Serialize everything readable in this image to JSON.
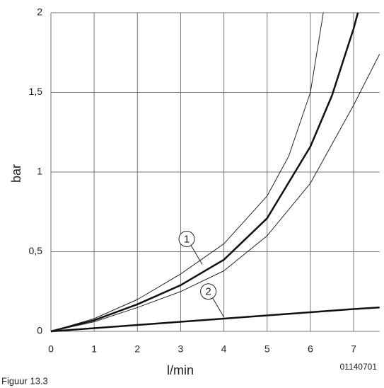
{
  "chart_data": {
    "type": "line",
    "y_label": "bar",
    "x_label": "l/min",
    "caption": "Figuur 13.3",
    "code": "01140701",
    "xlim": [
      0,
      7.6
    ],
    "ylim": [
      0,
      2
    ],
    "xticks": [
      0,
      1,
      2,
      3,
      4,
      5,
      6,
      7
    ],
    "yticks": [
      0,
      {
        "value": 0.5,
        "label": "0,5"
      },
      1,
      {
        "value": 1.5,
        "label": "1,5"
      },
      2
    ],
    "grid": true,
    "series": [
      {
        "color": "#222222",
        "width": 1,
        "x": [
          0,
          1,
          2,
          3,
          4,
          5,
          5.5,
          6,
          6.3
        ],
        "values": [
          0,
          0.08,
          0.2,
          0.36,
          0.55,
          0.85,
          1.1,
          1.5,
          2
        ]
      },
      {
        "color": "#111111",
        "width": 2.5,
        "x": [
          0,
          1,
          2,
          3,
          4,
          5,
          6,
          6.5,
          7,
          7.1
        ],
        "values": [
          0,
          0.07,
          0.17,
          0.29,
          0.45,
          0.71,
          1.16,
          1.48,
          1.9,
          2
        ]
      },
      {
        "color": "#222222",
        "width": 1,
        "x": [
          0,
          1,
          2,
          3,
          4,
          5,
          6,
          7,
          7.6
        ],
        "values": [
          0,
          0.06,
          0.15,
          0.25,
          0.38,
          0.6,
          0.93,
          1.42,
          1.74
        ]
      },
      {
        "color": "#111111",
        "width": 2.5,
        "x": [
          0,
          1,
          2,
          3,
          4,
          5,
          6,
          7,
          7.6
        ],
        "values": [
          0,
          0.02,
          0.04,
          0.06,
          0.08,
          0.1,
          0.12,
          0.14,
          0.15
        ]
      }
    ],
    "annotations": [
      {
        "text": "1",
        "x": 3.5,
        "y": 0.42
      },
      {
        "text": "2",
        "x": 4.0,
        "y": 0.09
      }
    ]
  }
}
